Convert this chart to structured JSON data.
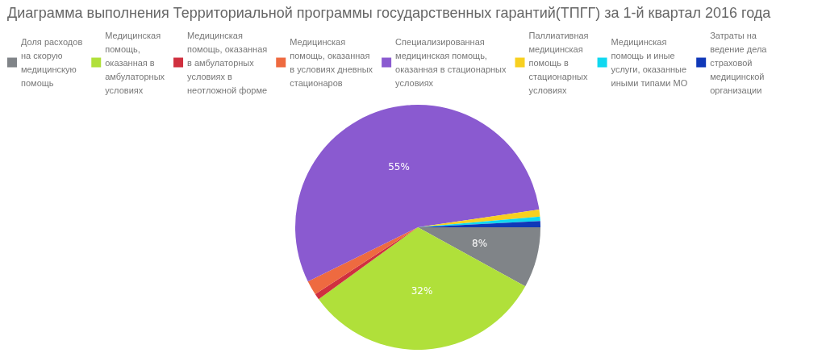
{
  "chart_data": {
    "type": "pie",
    "title": "Диаграмма выполнения Территориальной программы государственных гарантий(ТПГГ) за 1-й квартал 2016 года",
    "categories": [
      "Доля расходов на скорую медицинскую помощь",
      "Медицинская помощь, оказанная в амбулаторных условиях",
      "Медицинская помощь, оказанная в амбулаторных условиях в неотложной форме",
      "Медицинская помощь, оказанная в условиях дневных стационаров",
      "Специализированная медицинская помощь, оказанная в стационарных условиях",
      "Паллиативная медицинская помощь в стационарных условиях",
      "Медицинская помощь и иные услуги, оказанные иными типами МО",
      "Затраты на ведение дела страховой медицинской организации"
    ],
    "values": [
      8,
      32,
      0.8,
      1.9,
      55,
      0.9,
      0.6,
      0.8
    ],
    "colors": [
      "#808488",
      "#b0e03a",
      "#d0303f",
      "#ee6a40",
      "#8a5ad0",
      "#f8d020",
      "#10d8f0",
      "#1038b8"
    ],
    "value_labels": [
      "8%",
      "32%",
      null,
      null,
      "55%",
      null,
      null,
      null
    ],
    "legend": "top"
  }
}
